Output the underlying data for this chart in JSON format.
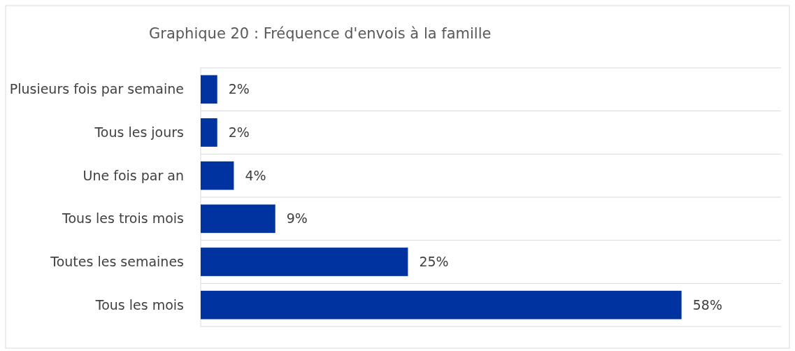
{
  "chart_data": {
    "type": "bar",
    "orientation": "horizontal",
    "title": "Graphique 20 :  Fréquence d'envois à la famille",
    "categories": [
      "Plusieurs fois par semaine",
      "Tous les jours",
      "Une fois par an",
      "Tous les trois mois",
      "Toutes les semaines",
      "Tous les mois"
    ],
    "values": [
      2,
      2,
      4,
      9,
      25,
      58
    ],
    "value_labels": [
      "2%",
      "2%",
      "4%",
      "9%",
      "25%",
      "58%"
    ],
    "color": "#0033a0",
    "xlim": [
      0,
      70
    ],
    "grid": "y",
    "tick_labels": "y"
  }
}
